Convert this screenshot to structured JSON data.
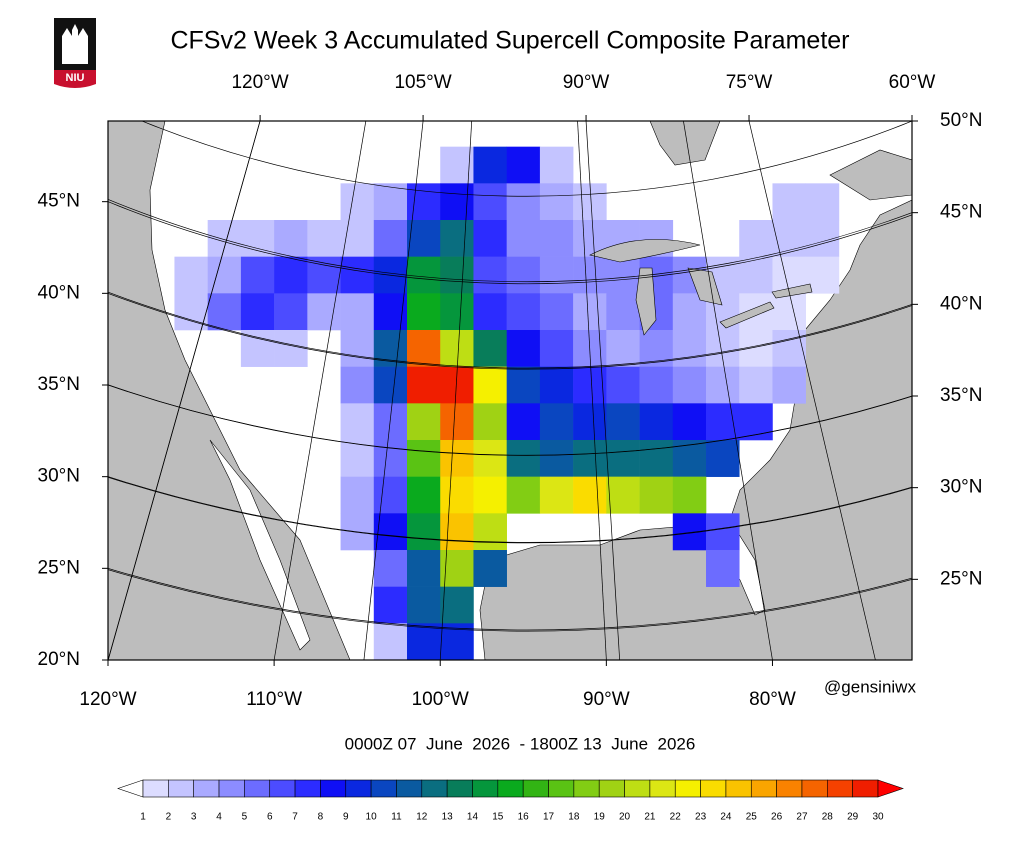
{
  "chart_data": {
    "type": "map",
    "title": "CFSv2 Week 3 Accumulated Supercell Composite Parameter",
    "logo_text": "NIU",
    "credit": "@gensiniwx",
    "period": "0000Z 07  June  2026  - 1800Z 13  June  2026",
    "xlim": [
      -120,
      -71.6
    ],
    "ylim": [
      20,
      49.4
    ],
    "x2lim": [
      -134,
      -60
    ],
    "y2lim": [
      20.6,
      50
    ],
    "xticks": [
      {
        "value": -120,
        "label": "120°W"
      },
      {
        "value": -110,
        "label": "110°W"
      },
      {
        "value": -100,
        "label": "100°W"
      },
      {
        "value": -90,
        "label": "90°W"
      },
      {
        "value": -80,
        "label": "80°W"
      }
    ],
    "yticks": [
      {
        "value": 20,
        "label": "20°N"
      },
      {
        "value": 25,
        "label": "25°N"
      },
      {
        "value": 30,
        "label": "30°N"
      },
      {
        "value": 35,
        "label": "35°N"
      },
      {
        "value": 40,
        "label": "40°N"
      },
      {
        "value": 45,
        "label": "45°N"
      }
    ],
    "x2ticks": [
      {
        "value": -120,
        "label": "120°W"
      },
      {
        "value": -105,
        "label": "105°W"
      },
      {
        "value": -90,
        "label": "90°W"
      },
      {
        "value": -75,
        "label": "75°W"
      },
      {
        "value": -60,
        "label": "60°W"
      }
    ],
    "y2ticks": [
      {
        "value": 25,
        "label": "25°N"
      },
      {
        "value": 30,
        "label": "30°N"
      },
      {
        "value": 35,
        "label": "35°N"
      },
      {
        "value": 40,
        "label": "40°N"
      },
      {
        "value": 45,
        "label": "45°N"
      },
      {
        "value": 50,
        "label": "50°N"
      }
    ],
    "grid": true,
    "colorbar_ticks": [
      1,
      2,
      3,
      4,
      5,
      6,
      7,
      8,
      9,
      10,
      11,
      12,
      13,
      14,
      15,
      16,
      17,
      18,
      19,
      20,
      21,
      22,
      23,
      24,
      25,
      26,
      27,
      28,
      29,
      30
    ],
    "colors": [
      "#ffffff",
      "#dcdcff",
      "#c4c4ff",
      "#aaaaff",
      "#8c8cff",
      "#6c6cff",
      "#4c4cff",
      "#2c2cff",
      "#0f0ff5",
      "#0a28e0",
      "#0a46c0",
      "#0a5aa0",
      "#0a6e80",
      "#087d5a",
      "#05963c",
      "#0aaa1e",
      "#32b414",
      "#5ac314",
      "#82cd14",
      "#a0d214",
      "#bede14",
      "#dce614",
      "#f5f000",
      "#fadc00",
      "#fac300",
      "#faa500",
      "#fa8200",
      "#f56400",
      "#f54100",
      "#f01e00",
      "#ff0000"
    ],
    "cells": {
      "lons": [
        -115,
        -113,
        -111,
        -109,
        -107,
        -105,
        -103,
        -101,
        -99,
        -97,
        -95,
        -93,
        -91,
        -89,
        -87,
        -85,
        -83,
        -81,
        -79,
        -77
      ],
      "lats": [
        47,
        45,
        43,
        41,
        39,
        37,
        35,
        33,
        31,
        29,
        27,
        25,
        23,
        21
      ],
      "values": [
        [
          null,
          null,
          null,
          null,
          null,
          null,
          null,
          null,
          2,
          9,
          8,
          2,
          null,
          null,
          null,
          null,
          null,
          null,
          null,
          null
        ],
        [
          null,
          null,
          null,
          null,
          null,
          2,
          3,
          7,
          8,
          6,
          4,
          3,
          2,
          null,
          null,
          null,
          null,
          null,
          2,
          2
        ],
        [
          null,
          2,
          2,
          3,
          2,
          2,
          5,
          10,
          12,
          7,
          4,
          4,
          3,
          3,
          3,
          null,
          null,
          2,
          2,
          2
        ],
        [
          2,
          3,
          6,
          7,
          6,
          7,
          9,
          14,
          13,
          6,
          5,
          4,
          4,
          4,
          5,
          4,
          2,
          2,
          1,
          1
        ],
        [
          2,
          5,
          7,
          6,
          3,
          3,
          8,
          15,
          14,
          7,
          6,
          5,
          3,
          4,
          5,
          3,
          2,
          1,
          1,
          null
        ],
        [
          null,
          null,
          2,
          2,
          null,
          3,
          11,
          27,
          20,
          13,
          8,
          6,
          4,
          3,
          4,
          3,
          2,
          1,
          2,
          null
        ],
        [
          null,
          null,
          null,
          null,
          null,
          4,
          10,
          29,
          29,
          22,
          10,
          9,
          7,
          6,
          5,
          4,
          3,
          2,
          3,
          null
        ],
        [
          null,
          null,
          null,
          null,
          null,
          2,
          5,
          19,
          27,
          19,
          8,
          10,
          9,
          10,
          9,
          8,
          7,
          7,
          null,
          null
        ],
        [
          null,
          null,
          null,
          null,
          null,
          2,
          5,
          17,
          24,
          21,
          12,
          11,
          12,
          12,
          12,
          11,
          10,
          null,
          null,
          null
        ],
        [
          null,
          null,
          null,
          null,
          null,
          3,
          6,
          15,
          23,
          22,
          18,
          21,
          23,
          20,
          19,
          18,
          null,
          null,
          null,
          null
        ],
        [
          null,
          null,
          null,
          null,
          null,
          3,
          8,
          14,
          24,
          20,
          null,
          null,
          null,
          null,
          null,
          8,
          6,
          null,
          null,
          null
        ],
        [
          null,
          null,
          null,
          null,
          null,
          null,
          5,
          11,
          19,
          11,
          null,
          null,
          null,
          null,
          null,
          null,
          5,
          null,
          null,
          null
        ],
        [
          null,
          null,
          null,
          null,
          null,
          null,
          7,
          11,
          12,
          null,
          null,
          null,
          null,
          null,
          null,
          null,
          null,
          null,
          null,
          null
        ],
        [
          null,
          null,
          null,
          null,
          null,
          null,
          2,
          9,
          9,
          null,
          null,
          null,
          null,
          null,
          null,
          null,
          null,
          null,
          null,
          null
        ]
      ]
    }
  }
}
